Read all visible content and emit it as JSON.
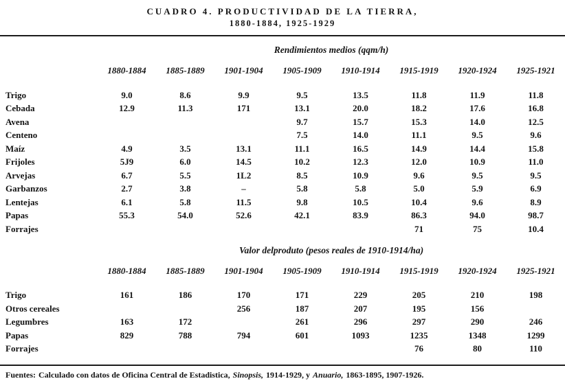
{
  "page": {
    "title_line1": "CUADRO 4. PRODUCTIVIDAD DE LA TIERRA,",
    "title_line2": "1880-1884, 1925-1929"
  },
  "sections": [
    {
      "heading": "Rendimientos medios (qqm/h)",
      "columns": [
        "1880-1884",
        "1885-1889",
        "1901-1904",
        "1905-1909",
        "1910-1914",
        "1915-1919",
        "1920-1924",
        "1925-1921"
      ],
      "rows": [
        {
          "label": "Trigo",
          "values": [
            "9.0",
            "8.6",
            "9.9",
            "9.5",
            "13.5",
            "11.8",
            "11.9",
            "11.8"
          ]
        },
        {
          "label": "Cebada",
          "values": [
            "12.9",
            "11.3",
            "171",
            "13.1",
            "20.0",
            "18.2",
            "17.6",
            "16.8"
          ]
        },
        {
          "label": "Avena",
          "values": [
            "",
            "",
            "",
            "9.7",
            "15.7",
            "15.3",
            "14.0",
            "12.5"
          ]
        },
        {
          "label": "Centeno",
          "values": [
            "",
            "",
            "",
            "7.5",
            "14.0",
            "11.1",
            "9.5",
            "9.6"
          ]
        },
        {
          "label": "Maíz",
          "values": [
            "4.9",
            "3.5",
            "13.1",
            "11.1",
            "16.5",
            "14.9",
            "14.4",
            "15.8"
          ]
        },
        {
          "label": "Frijoles",
          "values": [
            "5J9",
            "6.0",
            "14.5",
            "10.2",
            "12.3",
            "12.0",
            "10.9",
            "11.0"
          ]
        },
        {
          "label": "Arvejas",
          "values": [
            "6.7",
            "5.5",
            "1L2",
            "8.5",
            "10.9",
            "9.6",
            "9.5",
            "9.5"
          ]
        },
        {
          "label": "Garbanzos",
          "values": [
            "2.7",
            "3.8",
            "–",
            "5.8",
            "5.8",
            "5.0",
            "5.9",
            "6.9"
          ]
        },
        {
          "label": "Lentejas",
          "values": [
            "6.1",
            "5.8",
            "11.5",
            "9.8",
            "10.5",
            "10.4",
            "9.6",
            "8.9"
          ]
        },
        {
          "label": "Papas",
          "values": [
            "55.3",
            "54.0",
            "52.6",
            "42.1",
            "83.9",
            "86.3",
            "94.0",
            "98.7"
          ]
        },
        {
          "label": "Forrajes",
          "values": [
            "",
            "",
            "",
            "",
            "",
            "71",
            "75",
            "10.4"
          ]
        }
      ]
    },
    {
      "heading": "Valor delproduto (pesos reales de 1910-1914/ha)",
      "columns": [
        "1880-1884",
        "1885-1889",
        "1901-1904",
        "1905-1909",
        "1910-1914",
        "1915-1919",
        "1920-1924",
        "1925-1921"
      ],
      "rows": [
        {
          "label": "Trigo",
          "values": [
            "161",
            "186",
            "170",
            "171",
            "229",
            "205",
            "210",
            "198"
          ]
        },
        {
          "label": "Otros cereales",
          "values": [
            "",
            "",
            "256",
            "187",
            "207",
            "195",
            "156",
            ""
          ]
        },
        {
          "label": "Legumbres",
          "values": [
            "163",
            "172",
            "",
            "261",
            "296",
            "297",
            "290",
            "246"
          ]
        },
        {
          "label": "Papas",
          "values": [
            "829",
            "788",
            "794",
            "601",
            "1093",
            "1235",
            "1348",
            "1299"
          ]
        },
        {
          "label": "Forrajes",
          "values": [
            "",
            "",
            "",
            "",
            "",
            "76",
            "80",
            "110"
          ]
        }
      ]
    }
  ],
  "footer": {
    "prefix": "Fuentes:",
    "part1": "Calculado con datos de Oficina Central de Estadistica,",
    "italic1": "Sinopsis,",
    "part2": "1914-1929, y",
    "italic2": "Anuario,",
    "part3": "1863-1895, 1907-1926."
  }
}
